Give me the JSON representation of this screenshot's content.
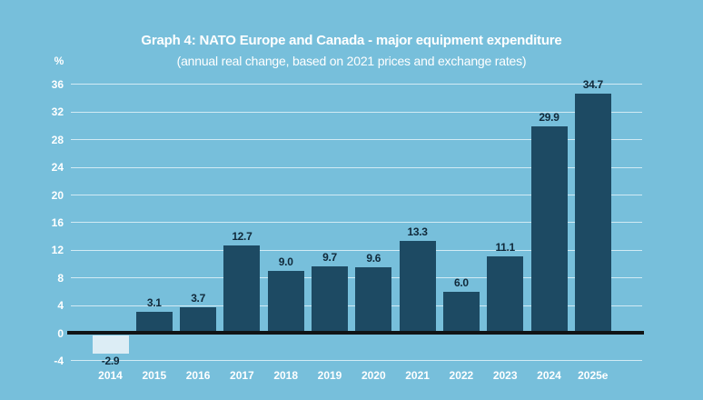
{
  "header": {
    "title": "Graph 4: NATO Europe and Canada - major equipment expenditure",
    "subtitle": "(annual real change, based on 2021 prices and exchange rates)"
  },
  "y_axis": {
    "unit_label": "%",
    "tick_labels": [
      "36",
      "32",
      "28",
      "24",
      "20",
      "16",
      "12",
      "8",
      "4",
      "0",
      "-4"
    ]
  },
  "chart_data": {
    "type": "bar",
    "categories": [
      "2014",
      "2015",
      "2016",
      "2017",
      "2018",
      "2019",
      "2020",
      "2021",
      "2022",
      "2023",
      "2024",
      "2025e"
    ],
    "values": [
      -2.9,
      3.1,
      3.7,
      12.7,
      9.0,
      9.7,
      9.6,
      13.3,
      6.0,
      11.1,
      29.9,
      34.7
    ],
    "value_labels": [
      "-2.9",
      "3.1",
      "3.7",
      "12.7",
      "9.0",
      "9.7",
      "9.6",
      "13.3",
      "6.0",
      "11.1",
      "29.9",
      "34.7"
    ],
    "title": "Graph 4: NATO Europe and Canada - major equipment expenditure",
    "subtitle": "(annual real change, based on 2021 prices and exchange rates)",
    "xlabel": "",
    "ylabel": "%",
    "ylim": [
      -4,
      36
    ],
    "y_tick_step": 4,
    "grid": true,
    "legend": false,
    "colors": {
      "background": "#77bfdb",
      "bar_positive": "#1d4a63",
      "bar_negative": "#dcedf5",
      "gridline": "#d2ebf4",
      "zero_line": "#101416",
      "axis_text": "#ffffff",
      "value_label_text": "#10293a"
    }
  }
}
